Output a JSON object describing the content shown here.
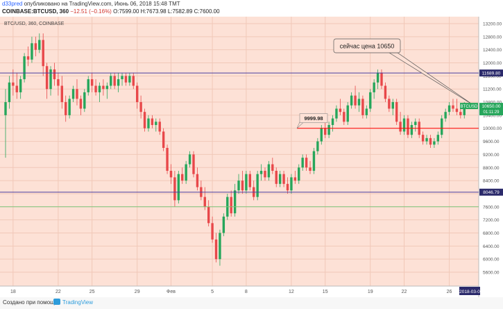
{
  "header": {
    "author": "d33pred",
    "published_text": "опубликовано на TradingView.com, Июнь 06, 2018 15:48 ТМТ",
    "symbol": "COINBASE:BTCUSD, 360",
    "change": "−12.51 (−0.16%)",
    "ohlc": "O:7599.00 H:7673.98 L:7582.89 C:7600.00"
  },
  "chart_data": {
    "type": "candlestick",
    "title": "BTC/USD, 360, COINBASE",
    "y_axis": {
      "min": 5600,
      "max": 13200,
      "ticks": [
        13200,
        12800,
        12400,
        12000,
        11600,
        11200,
        10800,
        10400,
        10000,
        9600,
        9200,
        8800,
        8400,
        8000,
        7600,
        7200,
        6800,
        6400,
        6000,
        5600
      ]
    },
    "x_axis": {
      "ticks": [
        {
          "label": "18",
          "index": 2
        },
        {
          "label": "22",
          "index": 14
        },
        {
          "label": "25",
          "index": 23
        },
        {
          "label": "29",
          "index": 35
        },
        {
          "label": "Фев",
          "index": 44
        },
        {
          "label": "5",
          "index": 55
        },
        {
          "label": "8",
          "index": 64
        },
        {
          "label": "12",
          "index": 76
        },
        {
          "label": "15",
          "index": 85
        },
        {
          "label": "19",
          "index": 97
        },
        {
          "label": "22",
          "index": 106
        },
        {
          "label": "26",
          "index": 118
        }
      ],
      "current_label": "2018-03-0"
    },
    "ohlc": [
      [
        10400,
        11200,
        9100,
        10800
      ],
      [
        10800,
        11600,
        10600,
        11400
      ],
      [
        11400,
        11800,
        11000,
        11300
      ],
      [
        11300,
        11700,
        10900,
        11100
      ],
      [
        11100,
        11600,
        10900,
        11500
      ],
      [
        11500,
        12300,
        11400,
        12200
      ],
      [
        12200,
        12500,
        11900,
        12100
      ],
      [
        12100,
        12800,
        12000,
        12600
      ],
      [
        12600,
        12800,
        12200,
        12400
      ],
      [
        12400,
        12900,
        12300,
        12700
      ],
      [
        12700,
        12900,
        11600,
        11900
      ],
      [
        11900,
        12000,
        10900,
        11200
      ],
      [
        11200,
        11900,
        11000,
        11800
      ],
      [
        11800,
        12000,
        11300,
        11500
      ],
      [
        11500,
        11700,
        11000,
        11300
      ],
      [
        11300,
        11600,
        10600,
        10800
      ],
      [
        10800,
        11000,
        10200,
        10400
      ],
      [
        10400,
        11000,
        10300,
        10900
      ],
      [
        10900,
        11300,
        10800,
        11200
      ],
      [
        11200,
        11500,
        10700,
        10900
      ],
      [
        10900,
        11000,
        10400,
        10600
      ],
      [
        10600,
        11200,
        10500,
        11100
      ],
      [
        11100,
        11600,
        11000,
        11500
      ],
      [
        11500,
        11700,
        11100,
        11300
      ],
      [
        11300,
        11500,
        11000,
        11100
      ],
      [
        11100,
        11400,
        10800,
        11300
      ],
      [
        11300,
        11500,
        11000,
        11200
      ],
      [
        11200,
        11400,
        10900,
        11300
      ],
      [
        11300,
        11700,
        11200,
        11600
      ],
      [
        11600,
        11700,
        11200,
        11300
      ],
      [
        11300,
        11700,
        11100,
        11500
      ],
      [
        11500,
        11700,
        11300,
        11600
      ],
      [
        11600,
        11700,
        11300,
        11400
      ],
      [
        11400,
        11700,
        11300,
        11600
      ],
      [
        11600,
        11700,
        11200,
        11300
      ],
      [
        11300,
        11400,
        10600,
        10800
      ],
      [
        10800,
        11000,
        10300,
        10500
      ],
      [
        10500,
        10600,
        9900,
        10000
      ],
      [
        10000,
        10400,
        9900,
        10300
      ],
      [
        10300,
        10400,
        10000,
        10100
      ],
      [
        10100,
        10300,
        9900,
        10200
      ],
      [
        10200,
        10300,
        9800,
        9900
      ],
      [
        9900,
        10000,
        9300,
        9400
      ],
      [
        9400,
        9500,
        8600,
        8700
      ],
      [
        8700,
        8900,
        8300,
        8500
      ],
      [
        8500,
        8700,
        7600,
        7800
      ],
      [
        7800,
        8700,
        7700,
        8600
      ],
      [
        8600,
        8800,
        8300,
        8400
      ],
      [
        8400,
        9000,
        8300,
        8900
      ],
      [
        8900,
        9300,
        8800,
        9200
      ],
      [
        9200,
        9300,
        8500,
        8600
      ],
      [
        8600,
        8800,
        8100,
        8200
      ],
      [
        8200,
        8400,
        7800,
        7900
      ],
      [
        7900,
        8200,
        7500,
        7600
      ],
      [
        7600,
        7800,
        7000,
        7100
      ],
      [
        7100,
        7300,
        6500,
        6600
      ],
      [
        6600,
        6800,
        5900,
        6000
      ],
      [
        6000,
        6900,
        5800,
        6800
      ],
      [
        6800,
        7400,
        6700,
        7300
      ],
      [
        7300,
        8000,
        7200,
        7900
      ],
      [
        7900,
        8100,
        7300,
        7400
      ],
      [
        7400,
        8300,
        7300,
        8100
      ],
      [
        8100,
        8600,
        8000,
        8400
      ],
      [
        8400,
        8700,
        8000,
        8100
      ],
      [
        8100,
        8700,
        8000,
        8600
      ],
      [
        8600,
        8700,
        8100,
        8200
      ],
      [
        8200,
        8400,
        7800,
        7900
      ],
      [
        7900,
        8700,
        7800,
        8600
      ],
      [
        8600,
        8900,
        8400,
        8700
      ],
      [
        8700,
        8800,
        8400,
        8500
      ],
      [
        8500,
        9000,
        8400,
        8900
      ],
      [
        8900,
        9100,
        8600,
        8700
      ],
      [
        8700,
        8800,
        8200,
        8300
      ],
      [
        8300,
        8700,
        8200,
        8600
      ],
      [
        8600,
        8700,
        8200,
        8300
      ],
      [
        8300,
        8500,
        8000,
        8100
      ],
      [
        8100,
        8600,
        8000,
        8500
      ],
      [
        8500,
        8700,
        8300,
        8400
      ],
      [
        8400,
        8900,
        8300,
        8800
      ],
      [
        8800,
        9200,
        8700,
        9100
      ],
      [
        9100,
        9200,
        8700,
        8800
      ],
      [
        8800,
        9000,
        8600,
        8700
      ],
      [
        8700,
        9400,
        8600,
        9300
      ],
      [
        9300,
        9700,
        9200,
        9600
      ],
      [
        9600,
        10100,
        9500,
        10000
      ],
      [
        10000,
        10200,
        9700,
        9800
      ],
      [
        9800,
        10200,
        9700,
        10100
      ],
      [
        10100,
        10400,
        9900,
        10300
      ],
      [
        10300,
        10700,
        10200,
        10600
      ],
      [
        10600,
        10900,
        10400,
        10500
      ],
      [
        10500,
        10600,
        10100,
        10200
      ],
      [
        10200,
        10800,
        10100,
        10700
      ],
      [
        10700,
        11100,
        10600,
        11000
      ],
      [
        11000,
        11300,
        10600,
        10700
      ],
      [
        10700,
        11100,
        10500,
        10900
      ],
      [
        10900,
        11000,
        10300,
        10400
      ],
      [
        10400,
        10700,
        10300,
        10600
      ],
      [
        10600,
        11200,
        10500,
        11100
      ],
      [
        11100,
        11500,
        10900,
        11400
      ],
      [
        11400,
        11800,
        11200,
        11700
      ],
      [
        11700,
        11800,
        11200,
        11300
      ],
      [
        11300,
        11400,
        10800,
        10900
      ],
      [
        10900,
        11000,
        10500,
        10600
      ],
      [
        10600,
        10900,
        10400,
        10800
      ],
      [
        10800,
        10900,
        10100,
        10200
      ],
      [
        10200,
        10500,
        9800,
        9900
      ],
      [
        9900,
        10400,
        9800,
        10300
      ],
      [
        10300,
        10400,
        9700,
        9800
      ],
      [
        9800,
        10200,
        9700,
        10100
      ],
      [
        10100,
        10300,
        9900,
        10200
      ],
      [
        10200,
        10300,
        9700,
        9800
      ],
      [
        9800,
        9900,
        9500,
        9600
      ],
      [
        9600,
        9800,
        9500,
        9700
      ],
      [
        9700,
        9800,
        9400,
        9500
      ],
      [
        9500,
        9700,
        9400,
        9600
      ],
      [
        9600,
        9900,
        9500,
        9800
      ],
      [
        9800,
        10400,
        9700,
        10300
      ],
      [
        10300,
        10600,
        10200,
        10500
      ],
      [
        10500,
        10800,
        10400,
        10700
      ],
      [
        10700,
        10900,
        10500,
        10600
      ],
      [
        10600,
        10900,
        10400,
        10500
      ],
      [
        10500,
        10700,
        10300,
        10400
      ],
      [
        10400,
        10800,
        10300,
        10650
      ]
    ],
    "horizontal_lines": [
      {
        "price": 11689.8,
        "label": "11689.80",
        "color": "#4a3fa0"
      },
      {
        "price": 8046.79,
        "label": "8046.79",
        "color": "#4a3fa0"
      },
      {
        "price": 10000,
        "label": "",
        "color": "#ff0000"
      },
      {
        "price": 7600,
        "label": "",
        "color": "#7bc67b"
      }
    ],
    "price_label": {
      "price": 10650,
      "text": "10650.00",
      "symbol": "BTCUSD",
      "timer": "01:11:29"
    },
    "annotations": {
      "callout": "сейчас цена 10650",
      "level_label": "9999.98"
    },
    "colors": {
      "up": "#26a65b",
      "down": "#e8484a",
      "background": "#fde1d6",
      "grid": "#f1c8b8",
      "horizontal": "#4a3fa0",
      "level": "#ff0000"
    }
  },
  "footer": {
    "created_with": "Создано при помощи",
    "brand": "TradingView"
  }
}
